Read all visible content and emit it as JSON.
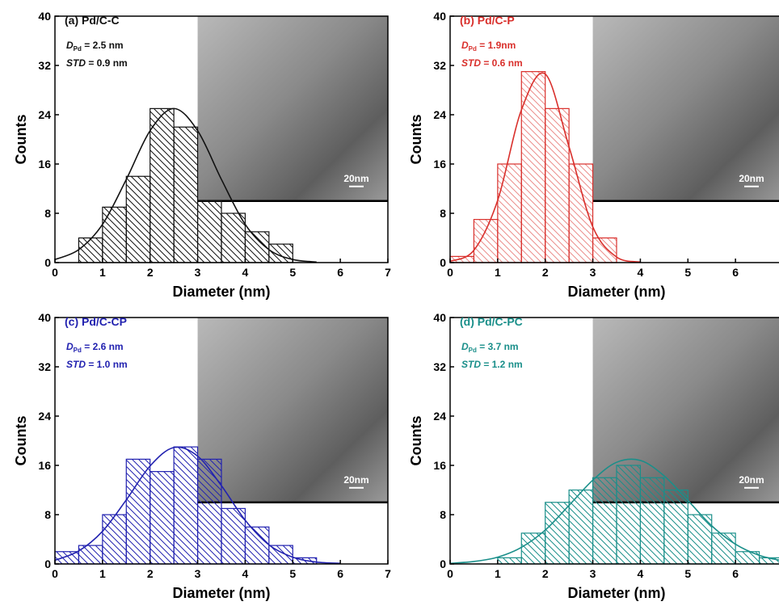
{
  "chart_data": [
    {
      "type": "histogram",
      "title": "(a) Pd/C-C",
      "color": "#111111",
      "stats": [
        {
          "symbol": "D",
          "sub": "Pd",
          "text": " = 2.5 nm"
        },
        {
          "symbol": "STD",
          "text": " = 0.9 nm"
        }
      ],
      "inset_label": "20nm",
      "xlabel": "Diameter (nm)",
      "ylabel": "Counts",
      "bins": [
        0.5,
        1,
        1.5,
        2,
        2.5,
        3,
        3.5,
        4,
        4.5,
        5
      ],
      "counts": [
        4,
        9,
        14,
        25,
        22,
        10,
        8,
        5,
        3
      ],
      "fit": {
        "x": [
          0,
          0.5,
          1,
          1.5,
          2,
          2.5,
          3,
          3.5,
          4,
          4.5,
          5,
          5.5
        ],
        "y": [
          0.5,
          2.1,
          6.2,
          13.5,
          21.4,
          25,
          21.4,
          13.5,
          6.2,
          2.1,
          0.5,
          0.1
        ]
      },
      "xlim": [
        0,
        7
      ],
      "xticks": [
        0,
        1,
        2,
        3,
        4,
        5,
        6,
        7
      ],
      "ylim": [
        0,
        40
      ],
      "yticks": [
        0,
        8,
        16,
        24,
        32,
        40
      ]
    },
    {
      "type": "histogram",
      "title": "(b) Pd/C-P",
      "color": "#d9302c",
      "stats": [
        {
          "symbol": "D",
          "sub": "Pd",
          "text": " = 1.9nm"
        },
        {
          "symbol": "STD",
          "text": " = 0.6 nm"
        }
      ],
      "inset_label": "20nm",
      "xlabel": "Diameter (nm)",
      "ylabel": "Counts",
      "bins": [
        0,
        0.5,
        1,
        1.5,
        2,
        2.5,
        3,
        3.5
      ],
      "counts": [
        1,
        7,
        16,
        31,
        25,
        16,
        4
      ],
      "fit": {
        "x": [
          0,
          0.5,
          1,
          1.5,
          2,
          2.5,
          3,
          3.5,
          4
        ],
        "y": [
          0.2,
          2.0,
          10.1,
          24.8,
          30.6,
          18.8,
          5.8,
          0.9,
          0.1
        ]
      },
      "xlim": [
        0,
        7
      ],
      "xticks": [
        0,
        1,
        2,
        3,
        4,
        5,
        6,
        7
      ],
      "ylim": [
        0,
        40
      ],
      "yticks": [
        0,
        8,
        16,
        24,
        32,
        40
      ]
    },
    {
      "type": "histogram",
      "title": "(c) Pd/C-CP",
      "color": "#2222b0",
      "stats": [
        {
          "symbol": "D",
          "sub": "Pd",
          "text": " = 2.6 nm"
        },
        {
          "symbol": "STD",
          "text": " = 1.0 nm"
        }
      ],
      "inset_label": "20nm",
      "xlabel": "Diameter (nm)",
      "ylabel": "Counts",
      "bins": [
        0,
        0.5,
        1,
        1.5,
        2,
        2.5,
        3,
        3.5,
        4,
        4.5,
        5,
        5.5
      ],
      "counts": [
        2,
        3,
        8,
        17,
        15,
        19,
        17,
        9,
        6,
        3,
        1
      ],
      "fit": {
        "x": [
          0,
          0.5,
          1,
          1.5,
          2,
          2.5,
          3,
          3.5,
          4,
          4.5,
          5,
          5.5,
          6
        ],
        "y": [
          0.6,
          2.1,
          5.3,
          10.4,
          15.9,
          18.9,
          17.5,
          12.7,
          7.1,
          3.1,
          1.1,
          0.3,
          0.1
        ]
      },
      "xlim": [
        0,
        7
      ],
      "xticks": [
        0,
        1,
        2,
        3,
        4,
        5,
        6,
        7
      ],
      "ylim": [
        0,
        40
      ],
      "yticks": [
        0,
        8,
        16,
        24,
        32,
        40
      ]
    },
    {
      "type": "histogram",
      "title": "(d) Pd/C-PC",
      "color": "#1a8f8a",
      "stats": [
        {
          "symbol": "D",
          "sub": "Pd",
          "text": " = 3.7 nm"
        },
        {
          "symbol": "STD",
          "text": " = 1.2 nm"
        }
      ],
      "inset_label": "20nm",
      "xlabel": "Diameter (nm)",
      "ylabel": "Counts",
      "bins": [
        1,
        1.5,
        2,
        2.5,
        3,
        3.5,
        4,
        4.5,
        5,
        5.5,
        6,
        6.5,
        7
      ],
      "counts": [
        1,
        5,
        10,
        12,
        14,
        16,
        14,
        12,
        8,
        5,
        2,
        1
      ],
      "fit": {
        "x": [
          0,
          0.5,
          1,
          1.5,
          2,
          2.5,
          3,
          3.5,
          4,
          4.5,
          5,
          5.5,
          6,
          6.5,
          7
        ],
        "y": [
          0.1,
          0.4,
          1.1,
          2.7,
          5.5,
          9.5,
          13.6,
          16.5,
          16.8,
          14.3,
          10.3,
          6.2,
          3.2,
          1.4,
          0.5
        ]
      },
      "xlim": [
        0,
        7
      ],
      "xticks": [
        0,
        1,
        2,
        3,
        4,
        5,
        6,
        7
      ],
      "ylim": [
        0,
        40
      ],
      "yticks": [
        0,
        8,
        16,
        24,
        32,
        40
      ]
    }
  ]
}
